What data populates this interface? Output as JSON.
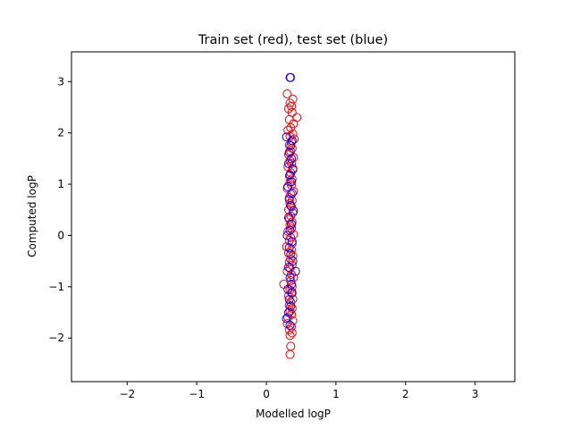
{
  "chart_data": {
    "type": "scatter",
    "title": "Train set (red), test set (blue)",
    "xlabel": "Modelled logP",
    "ylabel": "Computed logP",
    "xlim": [
      -2.8,
      3.57
    ],
    "ylim": [
      -2.85,
      3.58
    ],
    "xticks": [
      -2,
      -1,
      0,
      1,
      2,
      3
    ],
    "yticks": [
      -2,
      -1,
      0,
      1,
      2,
      3
    ],
    "grid": false,
    "marker": "open-circle",
    "series": [
      {
        "color": "#ff0000",
        "points": [
          [
            0.35,
            3.08
          ],
          [
            0.3,
            2.76
          ],
          [
            0.38,
            2.66
          ],
          [
            0.34,
            2.58
          ],
          [
            0.36,
            2.52
          ],
          [
            0.32,
            2.47
          ],
          [
            0.37,
            2.4
          ],
          [
            0.44,
            2.3
          ],
          [
            0.33,
            2.26
          ],
          [
            0.39,
            2.18
          ],
          [
            0.35,
            2.1
          ],
          [
            0.31,
            2.05
          ],
          [
            0.38,
            1.98
          ],
          [
            0.34,
            1.93
          ],
          [
            0.4,
            1.88
          ],
          [
            0.36,
            1.82
          ],
          [
            0.33,
            1.76
          ],
          [
            0.37,
            1.7
          ],
          [
            0.35,
            1.64
          ],
          [
            0.32,
            1.58
          ],
          [
            0.39,
            1.52
          ],
          [
            0.34,
            1.46
          ],
          [
            0.36,
            1.4
          ],
          [
            0.31,
            1.34
          ],
          [
            0.38,
            1.28
          ],
          [
            0.35,
            1.22
          ],
          [
            0.33,
            1.16
          ],
          [
            0.37,
            1.1
          ],
          [
            0.34,
            1.04
          ],
          [
            0.36,
            0.98
          ],
          [
            0.3,
            0.92
          ],
          [
            0.39,
            0.86
          ],
          [
            0.35,
            0.8
          ],
          [
            0.33,
            0.74
          ],
          [
            0.37,
            0.68
          ],
          [
            0.34,
            0.62
          ],
          [
            0.36,
            0.56
          ],
          [
            0.32,
            0.5
          ],
          [
            0.38,
            0.44
          ],
          [
            0.35,
            0.38
          ],
          [
            0.33,
            0.32
          ],
          [
            0.37,
            0.26
          ],
          [
            0.34,
            0.2
          ],
          [
            0.36,
            0.14
          ],
          [
            0.31,
            0.08
          ],
          [
            0.39,
            0.02
          ],
          [
            0.35,
            -0.04
          ],
          [
            0.33,
            -0.1
          ],
          [
            0.37,
            -0.16
          ],
          [
            0.29,
            -0.22
          ],
          [
            0.36,
            -0.28
          ],
          [
            0.32,
            -0.34
          ],
          [
            0.38,
            -0.4
          ],
          [
            0.35,
            -0.46
          ],
          [
            0.33,
            -0.52
          ],
          [
            0.37,
            -0.58
          ],
          [
            0.34,
            -0.64
          ],
          [
            0.3,
            -0.7
          ],
          [
            0.36,
            -0.76
          ],
          [
            0.39,
            -0.82
          ],
          [
            0.35,
            -0.88
          ],
          [
            0.25,
            -0.95
          ],
          [
            0.37,
            -1.0
          ],
          [
            0.34,
            -1.06
          ],
          [
            0.36,
            -1.12
          ],
          [
            0.32,
            -1.18
          ],
          [
            0.38,
            -1.24
          ],
          [
            0.35,
            -1.3
          ],
          [
            0.33,
            -1.36
          ],
          [
            0.37,
            -1.42
          ],
          [
            0.34,
            -1.48
          ],
          [
            0.36,
            -1.54
          ],
          [
            0.31,
            -1.6
          ],
          [
            0.38,
            -1.66
          ],
          [
            0.3,
            -1.72
          ],
          [
            0.36,
            -1.78
          ],
          [
            0.33,
            -1.84
          ],
          [
            0.37,
            -1.9
          ],
          [
            0.34,
            -1.95
          ],
          [
            0.35,
            -2.16
          ],
          [
            0.34,
            -2.32
          ]
        ]
      },
      {
        "color": "#0000ff",
        "points": [
          [
            0.34,
            3.08
          ],
          [
            0.29,
            1.92
          ],
          [
            0.37,
            1.85
          ],
          [
            0.35,
            1.75
          ],
          [
            0.33,
            1.62
          ],
          [
            0.36,
            1.5
          ],
          [
            0.32,
            1.4
          ],
          [
            0.38,
            1.3
          ],
          [
            0.34,
            1.18
          ],
          [
            0.36,
            1.05
          ],
          [
            0.31,
            0.95
          ],
          [
            0.37,
            0.82
          ],
          [
            0.33,
            0.7
          ],
          [
            0.35,
            0.58
          ],
          [
            0.39,
            0.48
          ],
          [
            0.32,
            0.35
          ],
          [
            0.36,
            0.22
          ],
          [
            0.34,
            0.1
          ],
          [
            0.3,
            0.0
          ],
          [
            0.37,
            -0.12
          ],
          [
            0.33,
            -0.24
          ],
          [
            0.35,
            -0.36
          ],
          [
            0.38,
            -0.5
          ],
          [
            0.32,
            -0.62
          ],
          [
            0.42,
            -0.7
          ],
          [
            0.34,
            -0.82
          ],
          [
            0.36,
            -0.95
          ],
          [
            0.31,
            -1.05
          ],
          [
            0.37,
            -1.12
          ],
          [
            0.33,
            -1.25
          ],
          [
            0.35,
            -1.38
          ],
          [
            0.32,
            -1.5
          ],
          [
            0.29,
            -1.62
          ],
          [
            0.34,
            -1.75
          ]
        ]
      }
    ]
  }
}
